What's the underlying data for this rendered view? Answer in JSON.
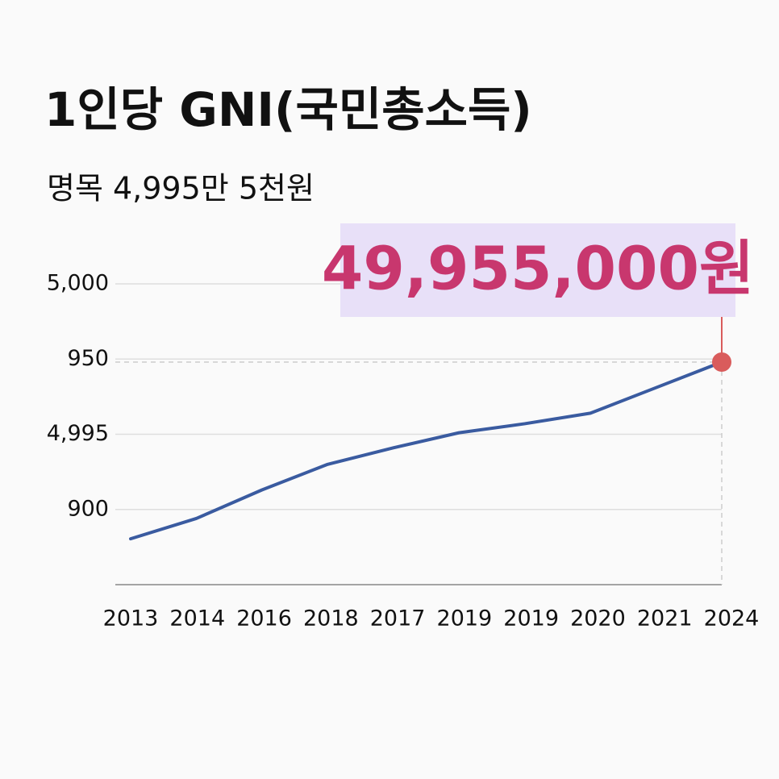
{
  "chart_data": {
    "type": "line",
    "title": "1인당 GNI(국민총소득)",
    "subtitle": "명목 4,995만 5천원",
    "annotation": "49,955,000원",
    "categories": [
      "2013",
      "2014",
      "2016",
      "2018",
      "2017",
      "2019",
      "2019",
      "2020",
      "2021",
      "2024"
    ],
    "series": [
      {
        "name": "1인당 GNI",
        "color": "#3a5ba0",
        "values": [
          0.61,
          0.88,
          1.26,
          1.6,
          1.82,
          2.02,
          2.14,
          2.28,
          2.62,
          2.96
        ]
      }
    ],
    "highlight_color": "#d95c5c",
    "ylim": [
      0,
      4
    ],
    "yticks": [
      {
        "value": 1,
        "label": "900"
      },
      {
        "value": 2,
        "label": "4,995"
      },
      {
        "value": 3,
        "label": "950"
      },
      {
        "value": 4,
        "label": "5,000"
      }
    ],
    "grid": true
  }
}
